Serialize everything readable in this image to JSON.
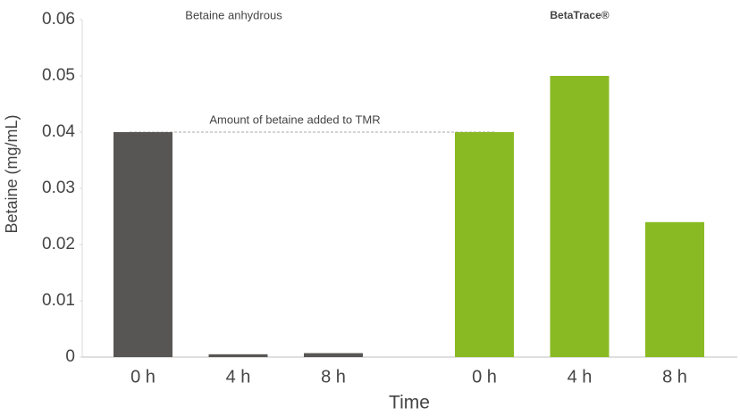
{
  "chart_data": {
    "type": "grouped-bar",
    "y_label": "Betaine (mg/mL)",
    "x_label": "Time",
    "ylim": [
      0,
      0.06
    ],
    "yticks": [
      0,
      0.01,
      0.02,
      0.03,
      0.04,
      0.05,
      0.06
    ],
    "groups": [
      {
        "name": "Betaine anhydrous",
        "color": "#585654",
        "categories": [
          "0 h",
          "4 h",
          "8 h"
        ],
        "values": [
          0.04,
          0.0005,
          0.0007
        ]
      },
      {
        "name": "BetaTrace®",
        "color": "#8aba23",
        "categories": [
          "0 h",
          "4 h",
          "8 h"
        ],
        "values": [
          0.04,
          0.05,
          0.024
        ]
      }
    ],
    "reference_line": {
      "label": "Amount of betaine added to TMR",
      "value": 0.04
    }
  }
}
